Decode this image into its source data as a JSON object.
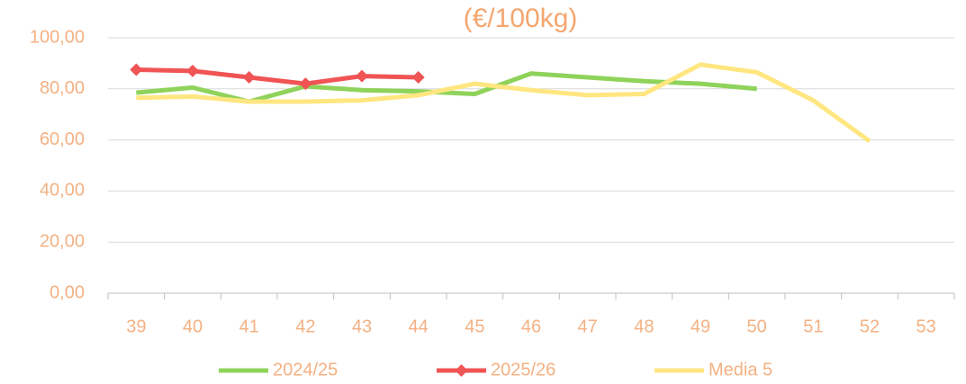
{
  "chart_data": {
    "type": "line",
    "title": "(€/100kg)",
    "categories": [
      "39",
      "40",
      "41",
      "42",
      "43",
      "44",
      "45",
      "46",
      "47",
      "48",
      "49",
      "50",
      "51",
      "52",
      "53"
    ],
    "series": [
      {
        "name": "2024/25",
        "color": "#8fd35a",
        "values": [
          78.5,
          80.5,
          75,
          81,
          79.5,
          79,
          78,
          86,
          84.5,
          83,
          82,
          80,
          null,
          null,
          null
        ]
      },
      {
        "name": "2025/26",
        "color": "#f05454",
        "marker": "diamond",
        "values": [
          87.5,
          87,
          84.5,
          82,
          85,
          84.5,
          null,
          null,
          null,
          null,
          null,
          null,
          null,
          null,
          null
        ]
      },
      {
        "name": "Media 5",
        "color": "#ffe680",
        "values": [
          76.5,
          77,
          75,
          75,
          75.5,
          77.5,
          82,
          79.5,
          77.5,
          78,
          89.5,
          86.5,
          75.5,
          59.5,
          null
        ]
      }
    ],
    "ylim": [
      0,
      100
    ],
    "yticks": [
      {
        "value": 0,
        "label": "0,00"
      },
      {
        "value": 20,
        "label": "20,00"
      },
      {
        "value": 40,
        "label": "40,00"
      },
      {
        "value": 60,
        "label": "60,00"
      },
      {
        "value": 80,
        "label": "80,00"
      },
      {
        "value": 100,
        "label": "100,00"
      }
    ],
    "grid": true,
    "legend": "bottom"
  }
}
